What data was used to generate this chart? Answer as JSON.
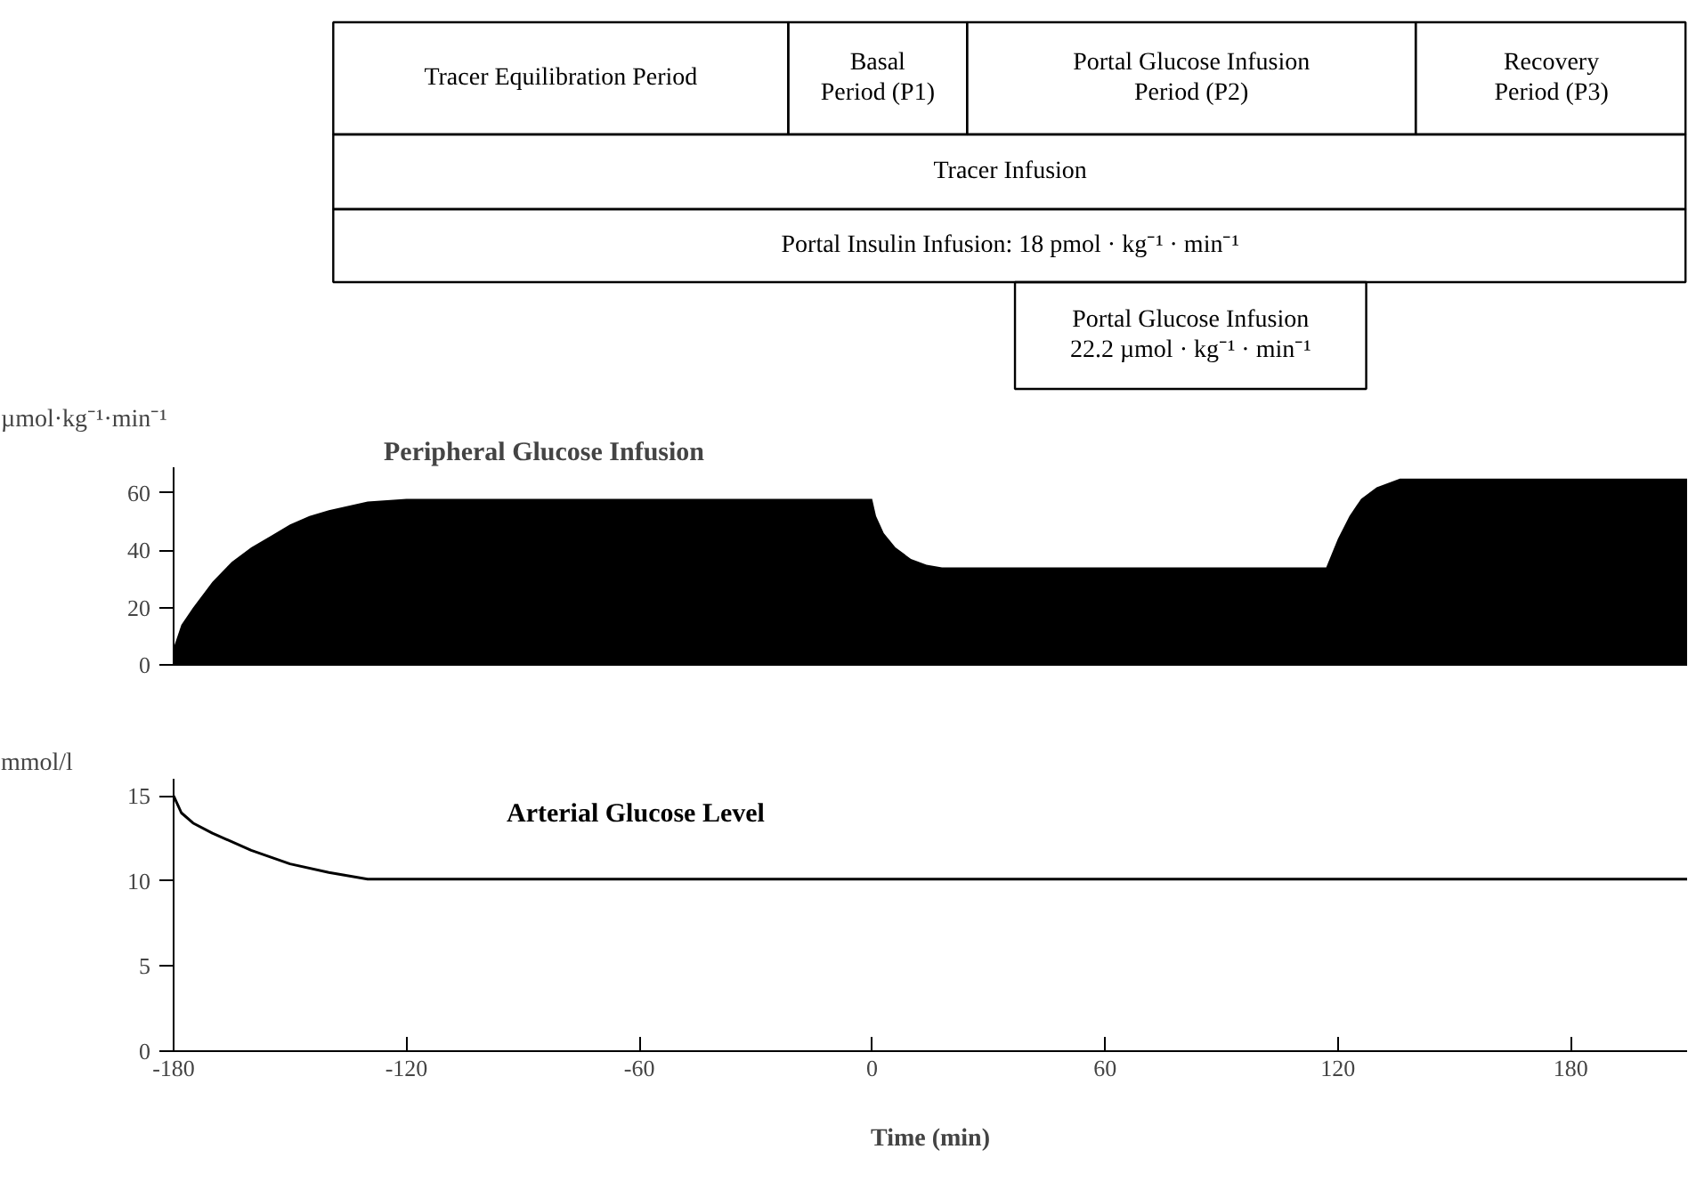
{
  "chart_data": [
    {
      "type": "other",
      "annotations": [
        "Tracer Equilibration Period",
        "Basal\nPeriod (P1)",
        "Portal Glucose Infusion\nPeriod (P2)",
        "Recovery\nPeriod (P3)",
        "Tracer Infusion",
        "Portal Insulin Infusion: 18 pmol · kg⁻¹ · min⁻¹",
        "Portal Glucose Infusion\n22.2 µmol · kg⁻¹ · min⁻¹"
      ]
    },
    {
      "type": "area",
      "title": "Peripheral Glucose Infusion",
      "ylabel": "µmol·kg⁻¹·min⁻¹",
      "color": "#000000",
      "x": [
        -180,
        -178,
        -175,
        -170,
        -165,
        -160,
        -155,
        -150,
        -145,
        -140,
        -130,
        -120,
        0,
        1,
        3,
        6,
        10,
        14,
        18,
        117,
        120,
        123,
        126,
        130,
        136,
        210
      ],
      "values": [
        6,
        14,
        20,
        29,
        36,
        41,
        45,
        49,
        52,
        54,
        57,
        58,
        58,
        52,
        46,
        41,
        37,
        35,
        34,
        34,
        44,
        52,
        58,
        62,
        65,
        65
      ],
      "xlim": [
        -180,
        210
      ],
      "ylim": [
        0,
        69
      ],
      "yticks": [
        0,
        20,
        40,
        60
      ],
      "tick_labels": "y",
      "grid": false
    },
    {
      "type": "line",
      "title": "Arterial Glucose Level",
      "ylabel": "mmol/l",
      "xlabel": "Time (min)",
      "color": "#000000",
      "x": [
        -180,
        -178,
        -175,
        -170,
        -160,
        -150,
        -140,
        -130,
        210
      ],
      "values": [
        15,
        14,
        13.4,
        12.8,
        11.8,
        11,
        10.5,
        10.1,
        10.1
      ],
      "xlim": [
        -180,
        210
      ],
      "ylim": [
        0,
        16
      ],
      "xticks": [
        -180,
        -120,
        -60,
        0,
        60,
        120,
        180
      ],
      "yticks": [
        0,
        5,
        10,
        15
      ],
      "grid": false
    }
  ]
}
